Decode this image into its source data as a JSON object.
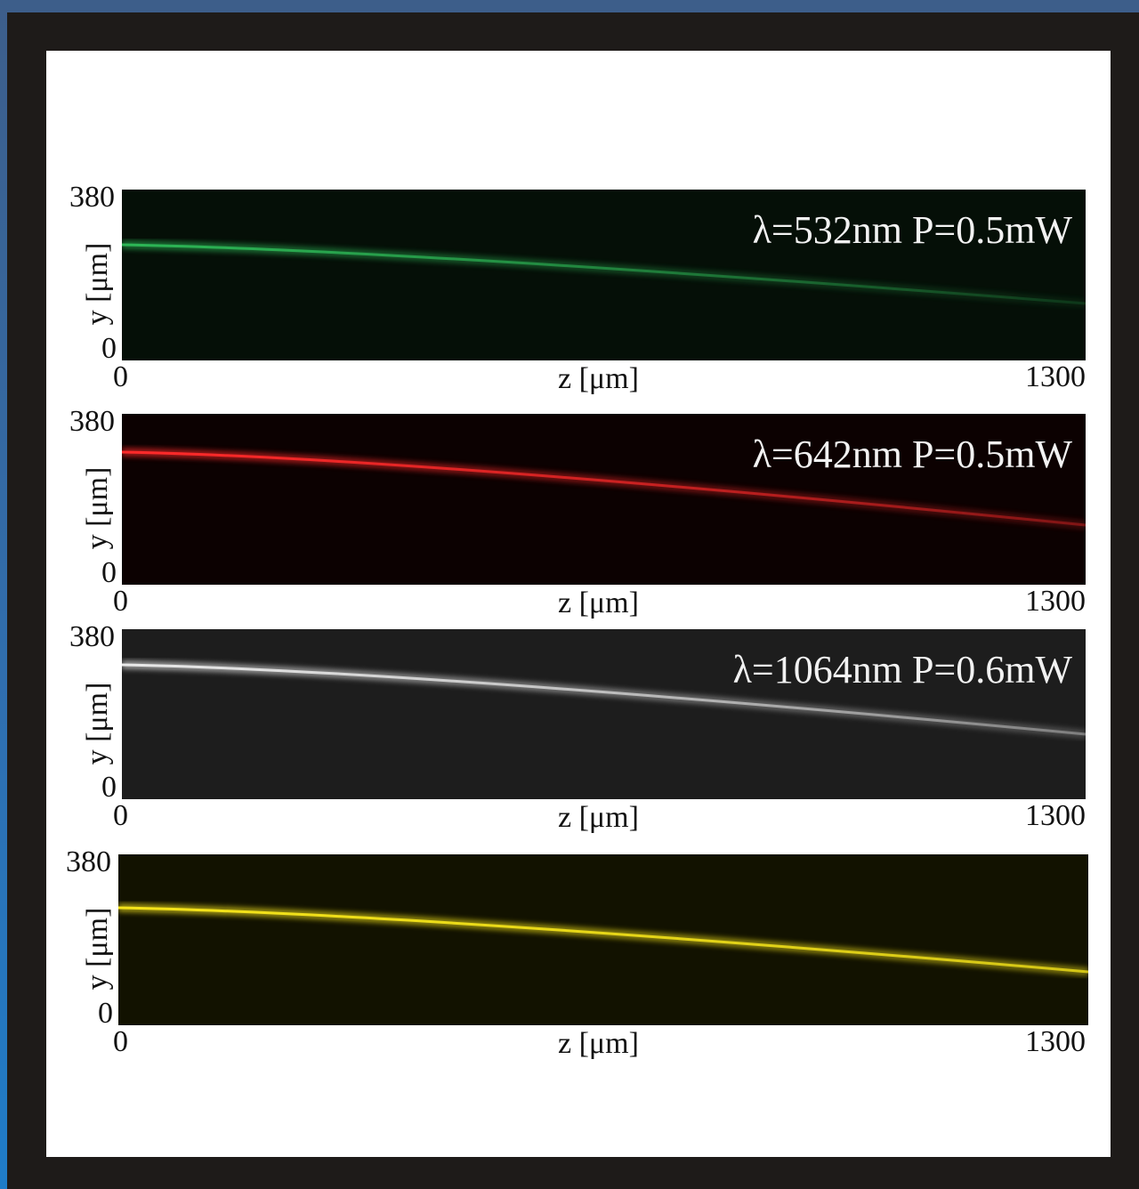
{
  "panels": [
    {
      "label": "λ=532nm P=0.5mW",
      "y_max": "380",
      "y_min": "0",
      "y_label": "y [μm]",
      "x_min": "0",
      "x_label": "z [μm]",
      "x_max": "1300"
    },
    {
      "label": "λ=642nm P=0.5mW",
      "y_max": "380",
      "y_min": "0",
      "y_label": "y [μm]",
      "x_min": "0",
      "x_label": "z [μm]",
      "x_max": "1300"
    },
    {
      "label": "λ=1064nm P=0.6mW",
      "y_max": "380",
      "y_min": "0",
      "y_label": "y [μm]",
      "x_min": "0",
      "x_label": "z [μm]",
      "x_max": "1300"
    },
    {
      "y_max": "380",
      "y_min": "0",
      "y_label": "y [μm]",
      "x_min": "0",
      "x_label": "z [μm]",
      "x_max": "1300"
    }
  ]
}
